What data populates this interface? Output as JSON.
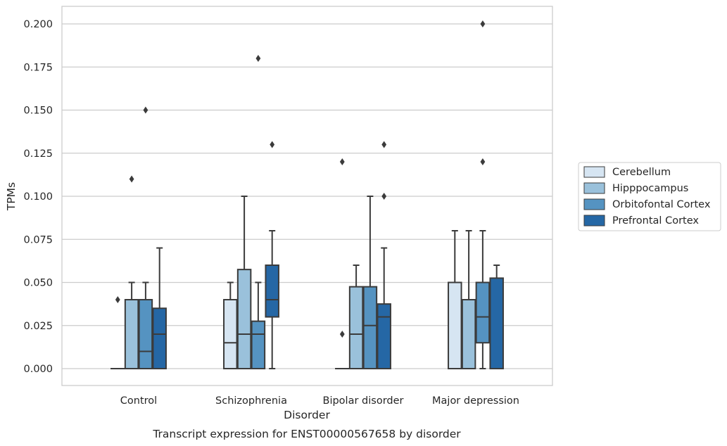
{
  "chart_data": {
    "type": "box",
    "title": "",
    "xlabel": "Disorder",
    "ylabel": "TPMs",
    "caption": "Transcript expression for ENST00000567658 by disorder",
    "ylim": [
      -0.01,
      0.21
    ],
    "yticks": [
      0.0,
      0.025,
      0.05,
      0.075,
      0.1,
      0.125,
      0.15,
      0.175,
      0.2
    ],
    "ytick_labels": [
      "0.000",
      "0.025",
      "0.050",
      "0.075",
      "0.100",
      "0.125",
      "0.150",
      "0.175",
      "0.200"
    ],
    "grid": "horizontal",
    "legend_position": "right",
    "categories": [
      "Control",
      "Schizophrenia",
      "Bipolar disorder",
      "Major depression"
    ],
    "series": [
      {
        "name": "Cerebellum",
        "color": "#d6e5f2",
        "boxes": [
          {
            "q1": 0.0,
            "median": 0.0,
            "q3": 0.0,
            "whisker_low": 0.0,
            "whisker_high": 0.0,
            "outliers": [
              0.04
            ]
          },
          {
            "q1": 0.0,
            "median": 0.015,
            "q3": 0.04,
            "whisker_low": 0.0,
            "whisker_high": 0.05,
            "outliers": []
          },
          {
            "q1": 0.0,
            "median": 0.0,
            "q3": 0.0,
            "whisker_low": 0.0,
            "whisker_high": 0.0,
            "outliers": [
              0.02,
              0.12
            ]
          },
          {
            "q1": 0.0,
            "median": 0.0,
            "q3": 0.05,
            "whisker_low": 0.0,
            "whisker_high": 0.08,
            "outliers": []
          }
        ]
      },
      {
        "name": "Hipppocampus",
        "color": "#9ac1db",
        "boxes": [
          {
            "q1": 0.0,
            "median": 0.0,
            "q3": 0.04,
            "whisker_low": 0.0,
            "whisker_high": 0.05,
            "outliers": [
              0.11
            ]
          },
          {
            "q1": 0.0,
            "median": 0.02,
            "q3": 0.0575,
            "whisker_low": 0.0,
            "whisker_high": 0.1,
            "outliers": []
          },
          {
            "q1": 0.0,
            "median": 0.02,
            "q3": 0.0475,
            "whisker_low": 0.0,
            "whisker_high": 0.06,
            "outliers": []
          },
          {
            "q1": 0.0,
            "median": 0.0,
            "q3": 0.04,
            "whisker_low": 0.0,
            "whisker_high": 0.08,
            "outliers": []
          }
        ]
      },
      {
        "name": "Orbitofontal Cortex",
        "color": "#5593c1",
        "boxes": [
          {
            "q1": 0.0,
            "median": 0.01,
            "q3": 0.04,
            "whisker_low": 0.0,
            "whisker_high": 0.05,
            "outliers": [
              0.15
            ]
          },
          {
            "q1": 0.0,
            "median": 0.02,
            "q3": 0.0275,
            "whisker_low": 0.0,
            "whisker_high": 0.05,
            "outliers": [
              0.18
            ]
          },
          {
            "q1": 0.0,
            "median": 0.025,
            "q3": 0.0475,
            "whisker_low": 0.0,
            "whisker_high": 0.1,
            "outliers": []
          },
          {
            "q1": 0.015,
            "median": 0.03,
            "q3": 0.05,
            "whisker_low": 0.0,
            "whisker_high": 0.08,
            "outliers": [
              0.12,
              0.2
            ]
          }
        ]
      },
      {
        "name": "Prefrontal Cortex",
        "color": "#2567a5",
        "boxes": [
          {
            "q1": 0.0,
            "median": 0.02,
            "q3": 0.035,
            "whisker_low": 0.0,
            "whisker_high": 0.07,
            "outliers": []
          },
          {
            "q1": 0.03,
            "median": 0.04,
            "q3": 0.06,
            "whisker_low": 0.0,
            "whisker_high": 0.08,
            "outliers": [
              0.13
            ]
          },
          {
            "q1": 0.0,
            "median": 0.03,
            "q3": 0.0375,
            "whisker_low": 0.0,
            "whisker_high": 0.07,
            "outliers": [
              0.1,
              0.13
            ]
          },
          {
            "q1": 0.0,
            "median": 0.0,
            "q3": 0.0525,
            "whisker_low": 0.0,
            "whisker_high": 0.06,
            "outliers": []
          }
        ]
      }
    ]
  }
}
